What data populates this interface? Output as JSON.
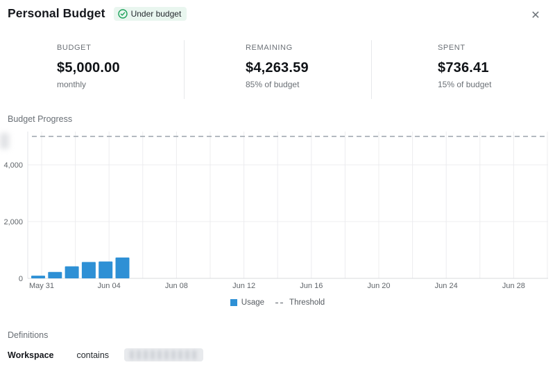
{
  "header": {
    "title": "Personal Budget",
    "badge_label": "Under budget",
    "close_icon": "✕"
  },
  "stats": [
    {
      "label": "BUDGET",
      "value": "$5,000.00",
      "sub": "monthly"
    },
    {
      "label": "REMAINING",
      "value": "$4,263.59",
      "sub": "85% of budget"
    },
    {
      "label": "SPENT",
      "value": "$736.41",
      "sub": "15% of budget"
    }
  ],
  "chart_section": {
    "title": "Budget Progress"
  },
  "chart_data": {
    "type": "bar",
    "title": "Budget Progress",
    "x": [
      "May 31",
      "Jun 01",
      "Jun 02",
      "Jun 03",
      "Jun 04",
      "Jun 05"
    ],
    "series": [
      {
        "name": "Usage",
        "values": [
          95,
          225,
          425,
          575,
          595,
          736
        ]
      }
    ],
    "threshold": {
      "name": "Threshold",
      "value": 5000
    },
    "x_axis_ticks": [
      "May 31",
      "Jun 04",
      "Jun 08",
      "Jun 12",
      "Jun 16",
      "Jun 20",
      "Jun 24",
      "Jun 28"
    ],
    "y_ticks": [
      0,
      2000,
      4000
    ],
    "ylim": [
      0,
      5250
    ],
    "x_span_days": 31,
    "grid": true,
    "legend": [
      "Usage",
      "Threshold"
    ],
    "legend_position": "bottom",
    "bar_color": "#2e90d5",
    "threshold_color": "#9ca3ab",
    "grid_color": "#ececef"
  },
  "definitions": {
    "title": "Definitions",
    "row": {
      "field": "Workspace",
      "operator": "contains",
      "value_redacted": true
    }
  },
  "colors": {
    "badge_bg": "#e9f6ef",
    "badge_check": "#1da25a",
    "accent_blue": "#2e90d5",
    "muted_text": "#6b7076"
  }
}
